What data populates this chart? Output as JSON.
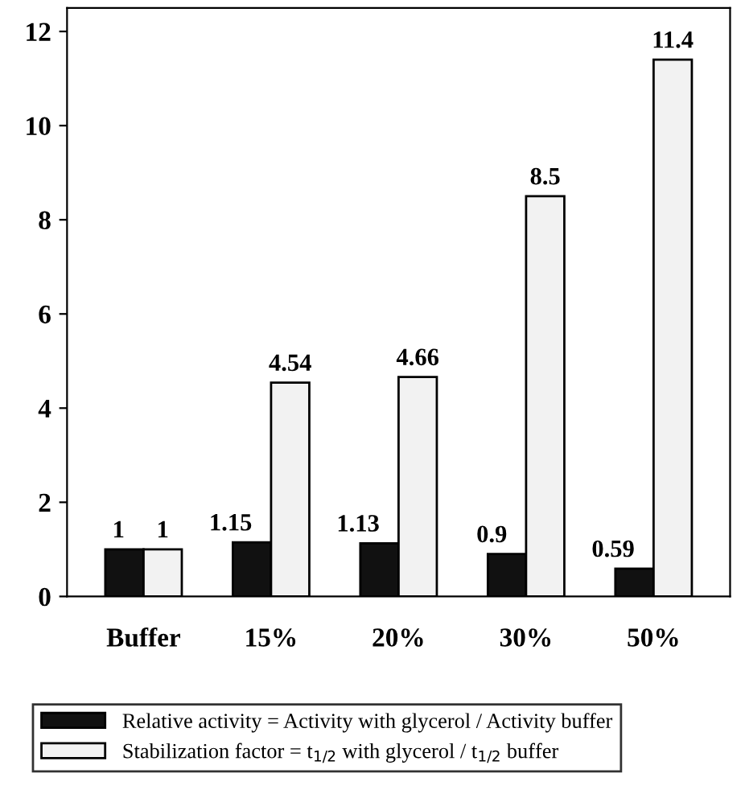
{
  "chart_data": {
    "type": "bar",
    "categories": [
      "Buffer",
      "15%",
      "20%",
      "30%",
      "50%"
    ],
    "series": [
      {
        "name": "Relative activity = Activity with glycerol / Activity buffer",
        "color": "#111111",
        "values": [
          1,
          1.15,
          1.13,
          0.9,
          0.59
        ]
      },
      {
        "name": "Stabilization factor = t$_{1/2}$ with glycerol / t$_{1/2}$ buffer",
        "color": "#f2f2f2",
        "values": [
          1,
          4.54,
          4.66,
          8.5,
          11.4
        ]
      }
    ],
    "ylim": [
      0,
      12.5
    ],
    "yticks": [
      0,
      2,
      4,
      6,
      8,
      10,
      12
    ],
    "data_labels": true,
    "grid": false,
    "legend": "bottom"
  }
}
